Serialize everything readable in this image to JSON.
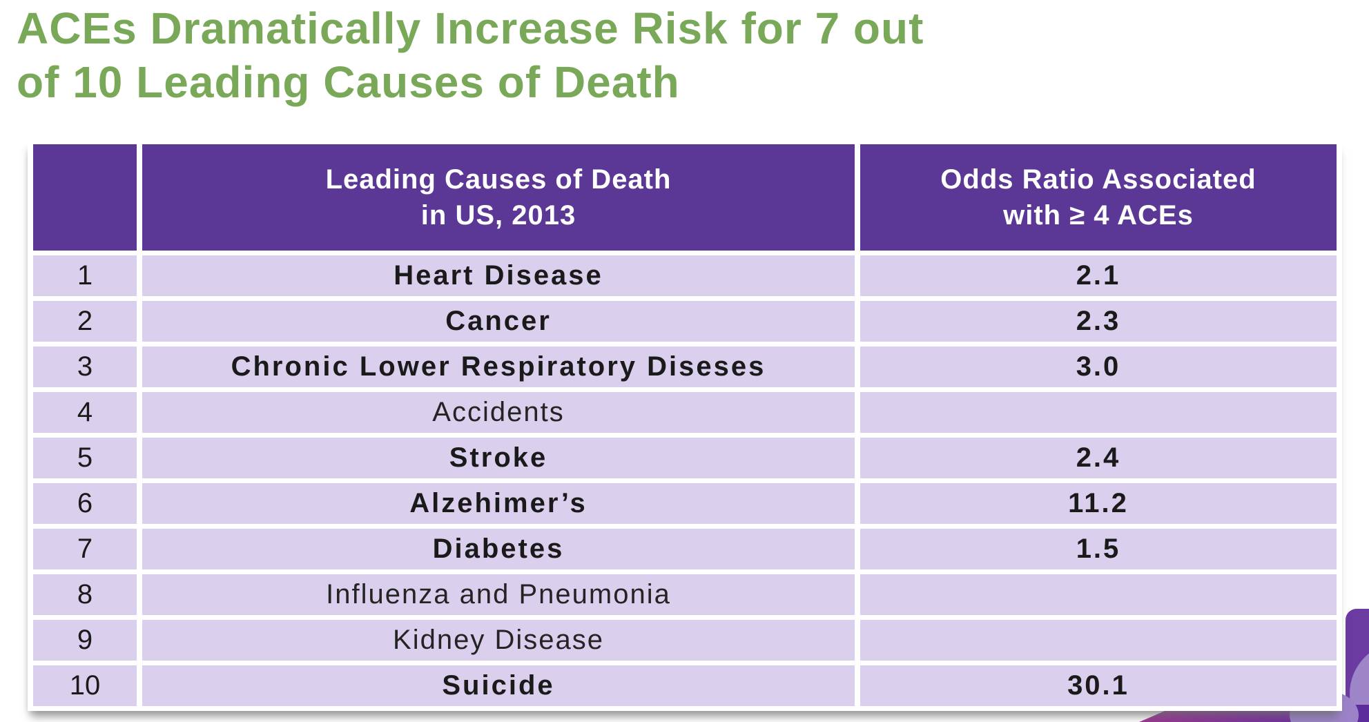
{
  "slide": {
    "title_line1": "ACEs Dramatically Increase Risk for 7 out",
    "title_line2": "of 10 Leading Causes of Death"
  },
  "table": {
    "header": {
      "rank_label": "",
      "cause_line1": "Leading Causes of Death",
      "cause_line2": "in US, 2013",
      "odds_line1": "Odds Ratio Associated",
      "odds_line2": "with ≥ 4 ACEs"
    },
    "rows": [
      {
        "rank": "1",
        "cause": "Heart Disease",
        "odds": "2.1",
        "emphasized": true
      },
      {
        "rank": "2",
        "cause": "Cancer",
        "odds": "2.3",
        "emphasized": true
      },
      {
        "rank": "3",
        "cause": "Chronic Lower Respiratory Diseses",
        "odds": "3.0",
        "emphasized": true
      },
      {
        "rank": "4",
        "cause": "Accidents",
        "odds": "",
        "emphasized": false
      },
      {
        "rank": "5",
        "cause": "Stroke",
        "odds": "2.4",
        "emphasized": true
      },
      {
        "rank": "6",
        "cause": "Alzehimer’s",
        "odds": "11.2",
        "emphasized": true
      },
      {
        "rank": "7",
        "cause": "Diabetes",
        "odds": "1.5",
        "emphasized": true
      },
      {
        "rank": "8",
        "cause": "Influenza and Pneumonia",
        "odds": "",
        "emphasized": false
      },
      {
        "rank": "9",
        "cause": "Kidney Disease",
        "odds": "",
        "emphasized": false
      },
      {
        "rank": "10",
        "cause": "Suicide",
        "odds": "30.1",
        "emphasized": true
      }
    ]
  },
  "colors": {
    "title_green": "#79a958",
    "header_purple": "#5b3796",
    "row_lavender": "#dbcfee",
    "text_dark": "#1a1a1a",
    "decor_dark_purple": "#6b3ba1",
    "decor_light_purple": "#9e85c7",
    "decor_band_left": "#9c3492",
    "decor_band_right": "#5b2b9b"
  }
}
